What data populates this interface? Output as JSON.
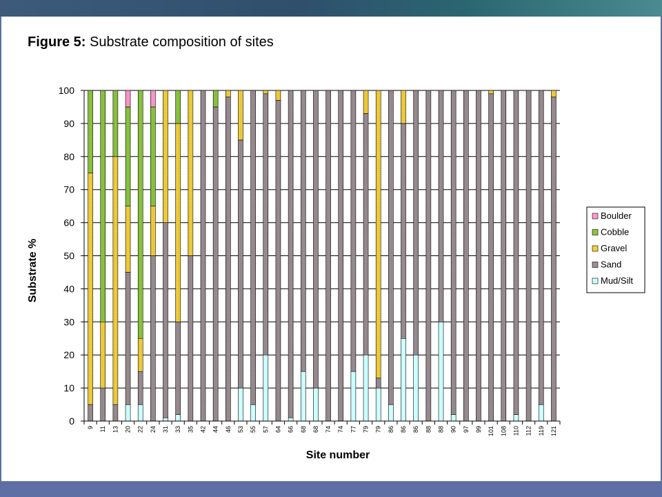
{
  "title_bold": "Figure 5:",
  "title_rest": " Substrate composition of sites",
  "chart_data": {
    "type": "bar",
    "stacked": true,
    "xlabel": "Site number",
    "ylabel": "Substrate %",
    "ylim": [
      0,
      100
    ],
    "yticks": [
      0,
      10,
      20,
      30,
      40,
      50,
      60,
      70,
      80,
      90,
      100
    ],
    "grid": true,
    "legend_position": "right",
    "categories": [
      "9",
      "11",
      "13",
      "20",
      "22",
      "24",
      "31",
      "33",
      "35",
      "42",
      "44",
      "46",
      "53",
      "55",
      "57",
      "64",
      "66",
      "68",
      "68",
      "74",
      "74",
      "77",
      "79",
      "79",
      "86",
      "86",
      "86",
      "88",
      "88",
      "90",
      "97",
      "99",
      "101",
      "108",
      "110",
      "112",
      "119",
      "121"
    ],
    "series": [
      {
        "name": "Mud/Silt",
        "color": "#ccffff",
        "values": [
          0,
          0,
          0,
          5,
          5,
          0,
          1,
          2,
          0,
          0,
          0,
          0,
          10,
          5,
          20,
          0,
          1,
          15,
          10,
          0,
          0,
          15,
          20,
          10,
          5,
          25,
          20,
          0,
          30,
          2,
          0,
          0,
          0,
          0,
          2,
          0,
          5,
          0
        ]
      },
      {
        "name": "Sand",
        "color": "#9a8e92",
        "values": [
          5,
          10,
          5,
          40,
          10,
          50,
          59,
          28,
          50,
          100,
          95,
          98,
          75,
          95,
          79,
          97,
          99,
          85,
          90,
          100,
          100,
          85,
          73,
          3,
          95,
          65,
          80,
          100,
          70,
          98,
          100,
          100,
          99,
          100,
          98,
          100,
          95,
          98
        ]
      },
      {
        "name": "Gravel",
        "color": "#f3cf3a",
        "values": [
          70,
          20,
          75,
          20,
          10,
          15,
          40,
          60,
          50,
          0,
          0,
          2,
          15,
          0,
          1,
          3,
          0,
          0,
          0,
          0,
          0,
          0,
          7,
          87,
          0,
          10,
          0,
          0,
          0,
          0,
          0,
          0,
          1,
          0,
          0,
          0,
          0,
          2
        ]
      },
      {
        "name": "Cobble",
        "color": "#8cc63f",
        "values": [
          25,
          70,
          20,
          30,
          75,
          30,
          0,
          10,
          0,
          0,
          5,
          0,
          0,
          0,
          0,
          0,
          0,
          0,
          0,
          0,
          0,
          0,
          0,
          0,
          0,
          0,
          0,
          0,
          0,
          0,
          0,
          0,
          0,
          0,
          0,
          0,
          0,
          0
        ]
      },
      {
        "name": "Boulder",
        "color": "#ff99cc",
        "values": [
          0,
          0,
          0,
          5,
          0,
          5,
          0,
          0,
          0,
          0,
          0,
          0,
          0,
          0,
          0,
          0,
          0,
          0,
          0,
          0,
          0,
          0,
          0,
          0,
          0,
          0,
          0,
          0,
          0,
          0,
          0,
          0,
          0,
          0,
          0,
          0,
          0,
          0
        ]
      }
    ],
    "legend_order": [
      "Boulder",
      "Cobble",
      "Gravel",
      "Sand",
      "Mud/Silt"
    ]
  }
}
